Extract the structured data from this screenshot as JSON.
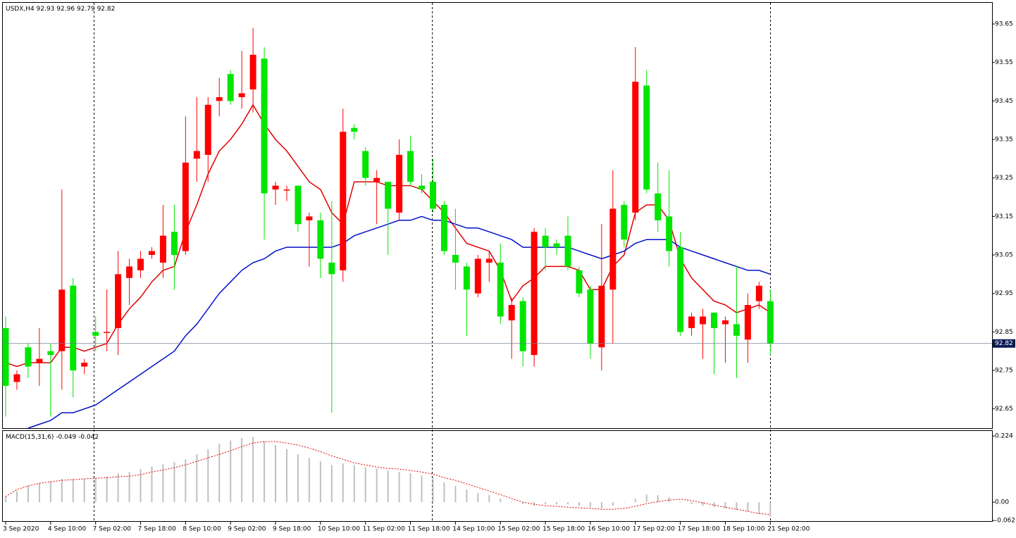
{
  "chart_data": [
    {
      "type": "candlestick",
      "title": "USDX,H4",
      "up_color": "#ff0000",
      "down_color": "#00e600",
      "categories": [
        "3 Sep 2020",
        null,
        null,
        null,
        "4 Sep 10:00",
        null,
        null,
        null,
        "7 Sep 02:00",
        null,
        null,
        null,
        "7 Sep 18:00",
        null,
        null,
        null,
        "8 Sep 10:00",
        null,
        null,
        null,
        "9 Sep 02:00",
        null,
        null,
        null,
        "9 Sep 18:00",
        null,
        null,
        null,
        "10 Sep 10:00",
        null,
        null,
        null,
        "11 Sep 02:00",
        null,
        null,
        null,
        "11 Sep 18:00",
        null,
        null,
        null,
        "14 Sep 10:00",
        null,
        null,
        null,
        "15 Sep 02:00",
        null,
        null,
        null,
        "15 Sep 18:00",
        null,
        null,
        null,
        "16 Sep 10:00",
        null,
        null,
        null,
        "17 Sep 02:00",
        null,
        null,
        null,
        "17 Sep 18:00",
        null,
        null,
        null,
        "18 Sep 10:00",
        null,
        null,
        null,
        "21 Sep 02:00"
      ],
      "open": [
        92.86,
        92.72,
        92.81,
        92.77,
        92.8,
        92.8,
        92.97,
        92.76,
        92.85,
        92.85,
        92.86,
        92.99,
        93.01,
        93.05,
        93.03,
        93.11,
        93.06,
        93.3,
        93.31,
        93.45,
        93.52,
        93.46,
        93.48,
        93.56,
        93.22,
        93.22,
        93.23,
        93.14,
        93.14,
        93.03,
        93.01,
        93.38,
        93.32,
        93.24,
        93.24,
        93.16,
        93.32,
        93.23,
        93.24,
        93.18,
        93.05,
        93.02,
        92.95,
        93.03,
        93.03,
        92.88,
        92.93,
        92.79,
        93.1,
        93.08,
        93.1,
        93.01,
        92.96,
        92.81,
        92.96,
        93.18,
        93.16,
        93.49,
        93.21,
        93.15,
        93.07,
        92.86,
        92.87,
        92.9,
        92.87,
        92.87,
        92.83,
        92.93,
        92.93
      ],
      "high": [
        92.89,
        92.75,
        92.82,
        92.86,
        92.82,
        93.22,
        92.99,
        92.78,
        92.89,
        92.96,
        93.06,
        93.04,
        93.06,
        93.07,
        93.18,
        93.18,
        93.41,
        93.46,
        93.46,
        93.51,
        93.53,
        93.58,
        93.64,
        93.59,
        93.24,
        93.23,
        93.23,
        93.16,
        93.16,
        93.19,
        93.43,
        93.39,
        93.33,
        93.27,
        93.24,
        93.35,
        93.36,
        93.26,
        93.3,
        93.19,
        93.17,
        93.03,
        93.05,
        93.06,
        93.08,
        92.94,
        92.94,
        93.12,
        93.12,
        93.09,
        93.15,
        93.02,
        92.97,
        93.13,
        93.27,
        93.19,
        93.59,
        93.53,
        93.29,
        93.27,
        93.11,
        92.9,
        92.91,
        92.9,
        92.89,
        93.02,
        92.95,
        92.98,
        92.96
      ],
      "low": [
        92.63,
        92.7,
        92.73,
        92.71,
        92.63,
        92.7,
        92.68,
        92.74,
        92.8,
        92.8,
        92.79,
        92.92,
        92.99,
        93.04,
        92.99,
        92.96,
        93.05,
        93.24,
        93.24,
        93.41,
        93.44,
        93.43,
        93.42,
        93.09,
        93.18,
        93.19,
        93.11,
        93.02,
        92.99,
        92.64,
        92.98,
        93.35,
        93.23,
        93.13,
        93.05,
        93.14,
        93.23,
        93.21,
        93.16,
        93.05,
        92.96,
        92.84,
        92.94,
        92.98,
        92.87,
        92.78,
        92.76,
        92.76,
        93.01,
        93.05,
        93.01,
        92.94,
        92.78,
        92.75,
        92.82,
        93.07,
        93.14,
        93.21,
        93.11,
        93.02,
        92.84,
        92.84,
        92.78,
        92.74,
        92.77,
        92.73,
        92.77,
        92.91,
        92.79
      ],
      "close": [
        92.71,
        92.74,
        92.76,
        92.78,
        92.79,
        92.96,
        92.75,
        92.77,
        92.84,
        92.85,
        93.0,
        93.02,
        93.04,
        93.06,
        93.1,
        93.05,
        93.29,
        93.32,
        93.44,
        93.46,
        93.45,
        93.47,
        93.57,
        93.21,
        93.23,
        93.22,
        93.13,
        93.15,
        93.04,
        93.0,
        93.37,
        93.37,
        93.25,
        93.25,
        93.17,
        93.31,
        93.24,
        93.22,
        93.17,
        93.06,
        93.03,
        92.96,
        93.04,
        93.04,
        92.89,
        92.92,
        92.8,
        93.11,
        93.07,
        93.07,
        93.02,
        92.95,
        92.82,
        92.97,
        93.17,
        93.09,
        93.5,
        93.22,
        93.14,
        93.06,
        92.85,
        92.89,
        92.89,
        92.86,
        92.88,
        92.84,
        92.92,
        92.97,
        92.82
      ],
      "overlays": [
        {
          "color": "#e00000",
          "values": [
            92.77,
            92.76,
            92.77,
            92.77,
            92.77,
            92.81,
            92.81,
            92.8,
            92.81,
            92.82,
            92.87,
            92.91,
            92.94,
            92.98,
            93.01,
            93.02,
            93.11,
            93.18,
            93.26,
            93.32,
            93.35,
            93.39,
            93.44,
            93.39,
            93.35,
            93.32,
            93.28,
            93.24,
            93.22,
            93.16,
            93.13,
            93.24,
            93.24,
            93.24,
            93.23,
            93.23,
            93.23,
            93.22,
            93.19,
            93.16,
            93.12,
            93.08,
            93.07,
            93.06,
            93.01,
            92.93,
            92.97,
            92.99,
            93.02,
            93.02,
            93.02,
            93.01,
            92.96,
            92.96,
            93.02,
            93.05,
            93.16,
            93.18,
            93.18,
            93.14,
            93.04,
            92.99,
            92.96,
            92.93,
            92.92,
            92.9,
            92.91,
            92.92,
            92.9
          ]
        },
        {
          "color": "#0010c8",
          "values": [
            null,
            null,
            92.6,
            92.61,
            92.62,
            92.64,
            92.64,
            92.65,
            92.66,
            92.68,
            92.7,
            92.72,
            92.74,
            92.76,
            92.78,
            92.8,
            92.84,
            92.87,
            92.91,
            92.95,
            92.98,
            93.01,
            93.03,
            93.04,
            93.06,
            93.07,
            93.07,
            93.07,
            93.07,
            93.07,
            93.08,
            93.1,
            93.11,
            93.12,
            93.13,
            93.14,
            93.14,
            93.15,
            93.14,
            93.14,
            93.13,
            93.12,
            93.12,
            93.11,
            93.1,
            93.09,
            93.07,
            93.07,
            93.07,
            93.07,
            93.07,
            93.06,
            93.05,
            93.04,
            93.05,
            93.06,
            93.08,
            93.09,
            93.09,
            93.09,
            93.07,
            93.06,
            93.05,
            93.04,
            93.03,
            93.02,
            93.01,
            93.01,
            93.0
          ]
        }
      ],
      "ylim": [
        92.6,
        93.705
      ],
      "yticks": [
        93.65,
        93.55,
        93.45,
        93.35,
        93.25,
        93.15,
        93.05,
        92.95,
        92.85,
        92.75,
        92.65
      ]
    },
    {
      "type": "macd",
      "title": "MACD(15,31,6)",
      "series": [
        {
          "color": "#c0c0c0",
          "values": [
            0.019,
            0.038,
            0.055,
            0.064,
            0.071,
            0.079,
            0.079,
            0.079,
            0.083,
            0.088,
            0.098,
            0.102,
            0.112,
            0.121,
            0.129,
            0.136,
            0.145,
            0.162,
            0.179,
            0.198,
            0.209,
            0.217,
            0.221,
            0.207,
            0.193,
            0.179,
            0.162,
            0.15,
            0.138,
            0.126,
            0.131,
            0.126,
            0.119,
            0.114,
            0.107,
            0.102,
            0.098,
            0.09,
            0.083,
            0.067,
            0.055,
            0.043,
            0.031,
            0.024,
            0.012,
            0.002,
            -0.007,
            -0.012,
            -0.007,
            -0.007,
            -0.007,
            -0.012,
            -0.017,
            -0.021,
            -0.012,
            -0.002,
            0.012,
            0.026,
            0.024,
            0.017,
            0.002,
            -0.007,
            -0.012,
            -0.017,
            -0.021,
            -0.026,
            -0.031,
            -0.04,
            -0.049
          ]
        },
        {
          "color": "#e00000",
          "values": [
            0.019,
            0.043,
            0.055,
            0.064,
            0.069,
            0.074,
            0.076,
            0.079,
            0.081,
            0.083,
            0.086,
            0.088,
            0.093,
            0.102,
            0.109,
            0.117,
            0.126,
            0.138,
            0.15,
            0.162,
            0.174,
            0.188,
            0.2,
            0.205,
            0.205,
            0.2,
            0.193,
            0.183,
            0.171,
            0.157,
            0.145,
            0.133,
            0.126,
            0.119,
            0.114,
            0.112,
            0.107,
            0.102,
            0.095,
            0.083,
            0.074,
            0.062,
            0.05,
            0.038,
            0.026,
            0.012,
            0,
            -0.007,
            -0.012,
            -0.014,
            -0.017,
            -0.019,
            -0.021,
            -0.024,
            -0.024,
            -0.021,
            -0.014,
            -0.005,
            0.002,
            0.007,
            0.01,
            0.005,
            -0.002,
            -0.01,
            -0.017,
            -0.024,
            -0.031,
            -0.038,
            -0.042
          ]
        }
      ],
      "ylim": [
        -0.064,
        0.241
      ],
      "yticks": [
        0.224,
        {
          "value": 0,
          "label": "0.00"
        },
        -0.062
      ]
    }
  ]
}
